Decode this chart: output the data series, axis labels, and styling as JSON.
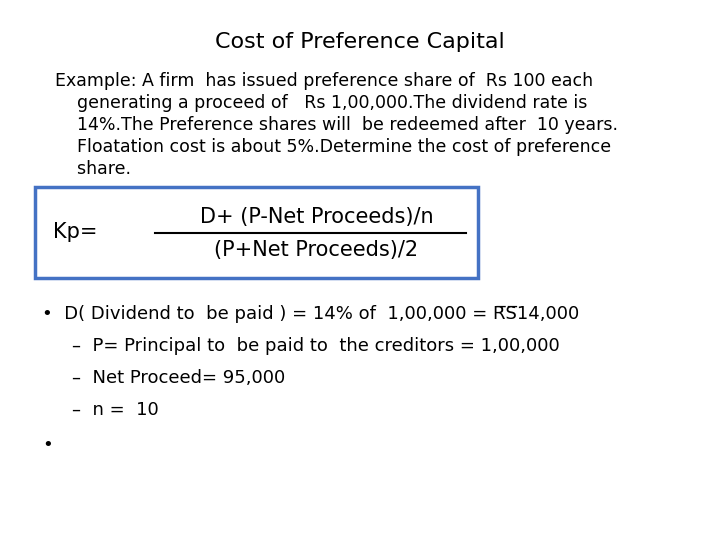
{
  "title": "Cost of Preference Capital",
  "title_fontsize": 16,
  "background_color": "#ffffff",
  "text_color": "#000000",
  "example_line1": "Example: A firm  has issued preference share of  Rs 100 each",
  "example_line2": "    generating a proceed of   Rs 1,00,000.The dividend rate is",
  "example_line3": "    14%.The Preference shares will  be redeemed after  10 years.",
  "example_line4": "    Floatation cost is about 5%.Determine the cost of preference",
  "example_line5": "    share.",
  "formula_kp": "Kp=",
  "formula_numerator": "D+ (P-Net Proceeds)/n",
  "formula_denominator": "(P+Net Proceeds)/2",
  "bullet1": "•  D( Dividend to  be paid ) = 14% of  1,00,000 = R̅S̅14,000",
  "sub1": "–  P= Principal to  be paid to  the creditors = 1,00,000",
  "sub2": "–  Net Proceed= 95,000",
  "sub3": "–  n =  10",
  "bullet2": "•",
  "box_color": "#4472C4",
  "font_family": "Arial Narrow"
}
